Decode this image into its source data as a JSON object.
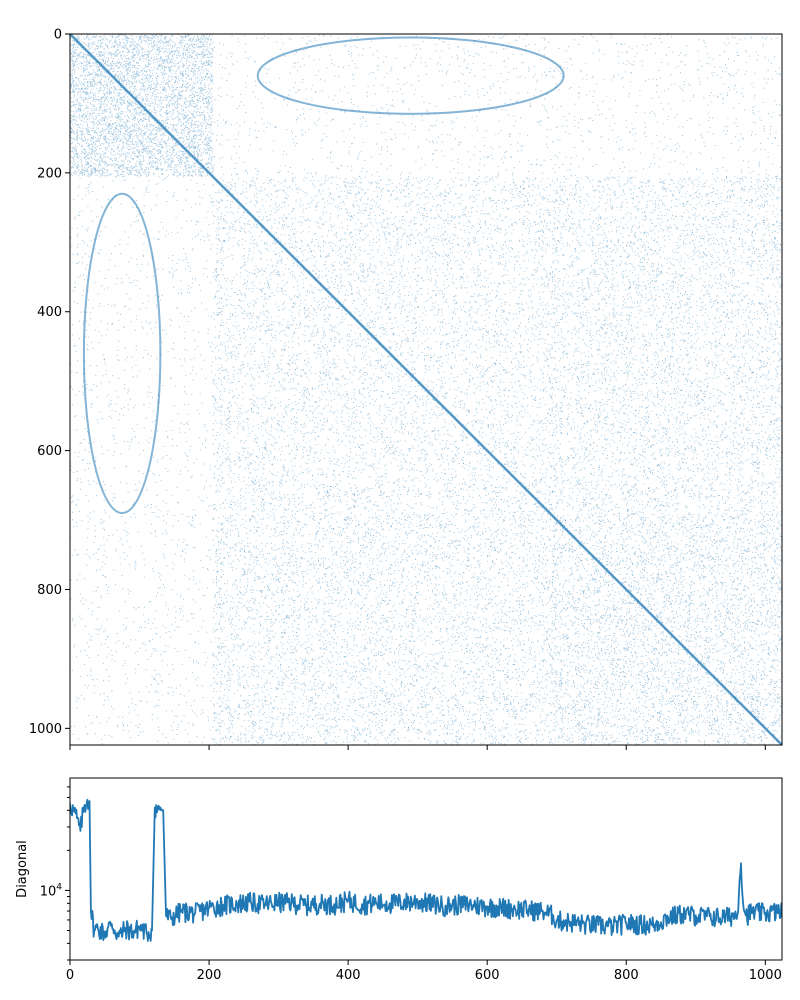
{
  "chart_data": [
    {
      "type": "scatter",
      "title": "",
      "xlabel": "",
      "ylabel": "",
      "xlim": [
        0,
        1024
      ],
      "ylim": [
        1024,
        0
      ],
      "y_inverted": true,
      "xticks": [
        "0",
        "200",
        "400",
        "600",
        "800",
        "1000"
      ],
      "yticks": [
        "0",
        "200",
        "400",
        "600",
        "800",
        "1000"
      ],
      "marker_color": "#1f77b4",
      "description_of_pattern": {
        "background_density": "uniform random points",
        "dense_blocks": [
          {
            "x": [
              205,
              690
            ],
            "y": [
              205,
              690
            ],
            "density": "high"
          },
          {
            "x": [
              0,
              205
            ],
            "y": [
              0,
              205
            ],
            "density": "medium"
          },
          {
            "x": [
              690,
              1024
            ],
            "y": [
              690,
              1024
            ],
            "density": "medium"
          },
          {
            "x": [
              205,
              690
            ],
            "y": [
              690,
              1024
            ],
            "density": "medium"
          },
          {
            "x": [
              690,
              1024
            ],
            "y": [
              205,
              690
            ],
            "density": "medium"
          }
        ],
        "diagonal_line": {
          "from": [
            0,
            0
          ],
          "to": [
            1024,
            1024
          ]
        },
        "arcs": [
          {
            "center": [
              490,
              60
            ],
            "rx": 220,
            "ry": 55,
            "region": "top"
          },
          {
            "center": [
              75,
              460
            ],
            "rx": 55,
            "ry": 230,
            "region": "left"
          }
        ]
      }
    },
    {
      "type": "line",
      "title": "",
      "xlabel": "",
      "ylabel": "Diagonal",
      "xlim": [
        0,
        1024
      ],
      "y_scale": "log",
      "ylim": [
        3000,
        70000
      ],
      "xticks": [
        "0",
        "200",
        "400",
        "600",
        "800",
        "1000"
      ],
      "yticks": [
        "10^4"
      ],
      "line_color": "#1f77b4",
      "series": [
        {
          "x": [
            0,
            5,
            10,
            15,
            20,
            25,
            28,
            30,
            35,
            40,
            50,
            60,
            70,
            80,
            90,
            100,
            110,
            118,
            122,
            126,
            130,
            134,
            138,
            145,
            160,
            180,
            200,
            220,
            240,
            260,
            280,
            300,
            320,
            340,
            360,
            380,
            400,
            420,
            440,
            460,
            480,
            500,
            520,
            540,
            560,
            580,
            600,
            620,
            640,
            660,
            680,
            695,
            700,
            720,
            740,
            760,
            780,
            800,
            820,
            840,
            860,
            880,
            900,
            920,
            940,
            960,
            965,
            968,
            972,
            980,
            1000,
            1020,
            1024
          ],
          "values": [
            45000,
            40000,
            35000,
            28000,
            42000,
            48000,
            47000,
            7000,
            5000,
            5200,
            4800,
            5600,
            4500,
            5200,
            4900,
            5300,
            4800,
            5000,
            42000,
            40000,
            42000,
            40000,
            6500,
            6200,
            7000,
            6800,
            7400,
            7800,
            8000,
            8200,
            7900,
            8200,
            8100,
            7800,
            8000,
            7900,
            8400,
            7900,
            8100,
            8000,
            8200,
            8300,
            8000,
            7700,
            7900,
            7800,
            7600,
            7500,
            7300,
            7200,
            7000,
            6500,
            6000,
            5800,
            5600,
            5500,
            5400,
            5700,
            5600,
            5500,
            6300,
            6700,
            6500,
            6400,
            6300,
            6600,
            16000,
            8000,
            6500,
            6900,
            6800,
            7000,
            6800
          ]
        }
      ]
    }
  ]
}
